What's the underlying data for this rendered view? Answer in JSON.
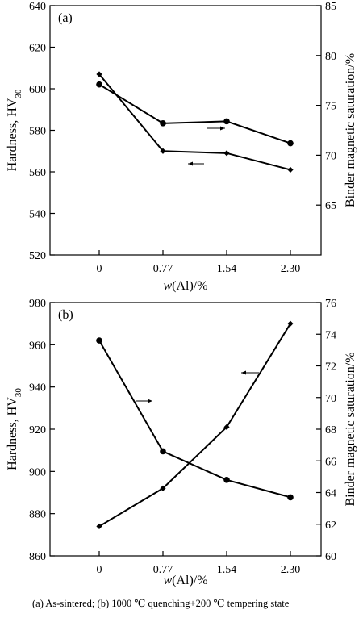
{
  "chart_data": [
    {
      "type": "line",
      "panel_label": "(a)",
      "categories": [
        "0",
        "0.77",
        "1.54",
        "2.30"
      ],
      "xlabel_prefix": "w",
      "xlabel_suffix": "(Al)/%",
      "ylabel_main": "Hardness, HV",
      "ylabel_sub": "30",
      "ylabel_right": "Binder magnetic saturation/%",
      "ylim": [
        520,
        640
      ],
      "yticks": [
        "520",
        "540",
        "560",
        "580",
        "600",
        "620",
        "640"
      ],
      "ylim_right": [
        60,
        85
      ],
      "yticks_right": [
        "65",
        "70",
        "75",
        "80",
        "85"
      ],
      "series": [
        {
          "axis": "left",
          "marker": "diamond",
          "values": [
            607,
            570,
            569,
            561
          ]
        },
        {
          "axis": "right",
          "marker": "circle",
          "values": [
            77.1,
            73.2,
            73.4,
            71.2
          ]
        }
      ]
    },
    {
      "type": "line",
      "panel_label": "(b)",
      "categories": [
        "0",
        "0.77",
        "1.54",
        "2.30"
      ],
      "xlabel_prefix": "w",
      "xlabel_suffix": "(Al)/%",
      "ylabel_main": "Hardness, HV",
      "ylabel_sub": "30",
      "ylabel_right": "Binder magnetic saturation/%",
      "ylim": [
        860,
        980
      ],
      "yticks": [
        "860",
        "880",
        "900",
        "920",
        "940",
        "960",
        "980"
      ],
      "ylim_right": [
        60,
        76
      ],
      "yticks_right": [
        "60",
        "62",
        "64",
        "66",
        "68",
        "70",
        "72",
        "74",
        "76"
      ],
      "series": [
        {
          "axis": "left",
          "marker": "diamond",
          "values": [
            874,
            892,
            921,
            970
          ]
        },
        {
          "axis": "right",
          "marker": "circle",
          "values": [
            73.6,
            66.6,
            64.8,
            63.7
          ]
        }
      ]
    }
  ],
  "caption": "(a)  As-sintered;  (b)  1000  ℃  quenching+200 ℃ tempering state"
}
